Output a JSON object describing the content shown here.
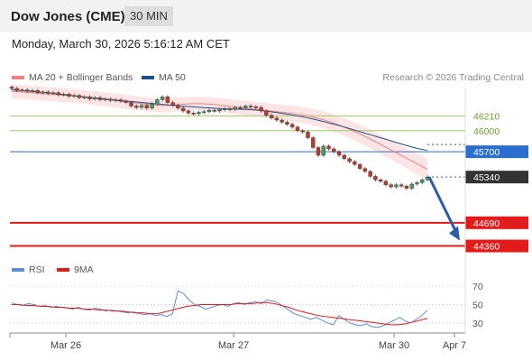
{
  "header": {
    "title": "Dow Jones (CME)",
    "timeframe": "30 MIN",
    "date": "Monday, March 30, 2026 5:16:12 AM CET"
  },
  "legend": {
    "ma20_label": "MA 20 + Bollinger Bands",
    "ma50_label": "MA 50",
    "credit": "Research © 2026 Trading Central",
    "rsi_label": "RSI",
    "rsi_ma_label": "9MA"
  },
  "colors": {
    "ma20": "#f08080",
    "band_fill": "#fde0e0",
    "ma50": "#1f4e8c",
    "resistance_line": "#9ccc65",
    "resistance_label": "#6a9f2e",
    "pivot": "#2a6ed0",
    "support": "#e31b1b",
    "current": "#333333",
    "candle_up": "#4a9a5a",
    "candle_down": "#c0392b",
    "arrow": "#2a5ca8",
    "rsi": "#5b8de0",
    "rsi_ma": "#e31b1b"
  },
  "chart_data": [
    {
      "type": "candlestick",
      "title": "",
      "x_ticks": [
        "Mar 26",
        "Mar 27",
        "Mar 30",
        "Apr 7"
      ],
      "ylim": [
        44200,
        46600
      ],
      "levels": [
        {
          "name": "resistance",
          "value": 46210,
          "label": "46210"
        },
        {
          "name": "resistance",
          "value": 46000,
          "label": "46000"
        },
        {
          "name": "pivot",
          "value": 45700,
          "label": "45700"
        },
        {
          "name": "current",
          "value": 45340,
          "label": "45340"
        },
        {
          "name": "support",
          "value": 44690,
          "label": "44690"
        },
        {
          "name": "support",
          "value": 44360,
          "label": "44360"
        }
      ],
      "closes": [
        46600,
        46570,
        46580,
        46560,
        46570,
        46540,
        46550,
        46530,
        46540,
        46510,
        46520,
        46490,
        46500,
        46470,
        46480,
        46450,
        46470,
        46440,
        46450,
        46430,
        46440,
        46420,
        46400,
        46350,
        46330,
        46360,
        46320,
        46380,
        46440,
        46480,
        46400,
        46360,
        46320,
        46280,
        46250,
        46240,
        46260,
        46270,
        46290,
        46280,
        46300,
        46310,
        46300,
        46330,
        46320,
        46350,
        46340,
        46330,
        46280,
        46220,
        46180,
        46150,
        46120,
        46090,
        46050,
        46000,
        45980,
        45900,
        45760,
        45650,
        45780,
        45740,
        45700,
        45650,
        45600,
        45560,
        45520,
        45460,
        45420,
        45350,
        45300,
        45280,
        45230,
        45200,
        45230,
        45210,
        45180,
        45240,
        45260,
        45300,
        45340
      ],
      "ma20": [
        46560,
        46550,
        46540,
        46530,
        46520,
        46510,
        46500,
        46490,
        46475,
        46460,
        46445,
        46430,
        46415,
        46400,
        46385,
        46370,
        46360,
        46360,
        46370,
        46380,
        46385,
        46380,
        46370,
        46355,
        46340,
        46325,
        46310,
        46295,
        46280,
        46265,
        46250,
        46235,
        46210,
        46180,
        46145,
        46100,
        46050,
        45995,
        45935,
        45870,
        45800,
        45730,
        45660,
        45590,
        45520,
        45450
      ],
      "ma50": [
        46580,
        46570,
        46560,
        46548,
        46535,
        46520,
        46505,
        46490,
        46475,
        46460,
        46448,
        46435,
        46422,
        46410,
        46398,
        46385,
        46372,
        46360,
        46350,
        46340,
        46330,
        46322,
        46315,
        46310,
        46305,
        46300,
        46290,
        46275,
        46258,
        46238,
        46215,
        46190,
        46162,
        46130,
        46095,
        46060,
        46020,
        45980,
        45940,
        45900,
        45860,
        45820,
        45780,
        45745,
        45720
      ]
    },
    {
      "type": "line",
      "title": "",
      "ylim": [
        20,
        75
      ],
      "y_ticks": [
        70,
        50,
        30
      ],
      "series": [
        {
          "name": "RSI",
          "values": [
            52,
            50,
            49,
            51,
            50,
            48,
            49,
            47,
            48,
            47,
            46,
            45,
            47,
            45,
            44,
            46,
            45,
            43,
            44,
            43,
            42,
            41,
            42,
            40,
            39,
            40,
            38,
            39,
            37,
            40,
            65,
            62,
            55,
            50,
            48,
            45,
            47,
            49,
            50,
            48,
            51,
            52,
            50,
            52,
            53,
            51,
            55,
            54,
            52,
            48,
            44,
            40,
            38,
            36,
            34,
            36,
            33,
            30,
            28,
            38,
            34,
            30,
            28,
            27,
            29,
            26,
            25,
            27,
            30,
            33,
            36,
            32,
            30,
            34,
            38,
            44
          ]
        },
        {
          "name": "9MA",
          "values": [
            50,
            50,
            49,
            49,
            48,
            48,
            47,
            47,
            46,
            46,
            45,
            45,
            44,
            44,
            43,
            43,
            42,
            41,
            41,
            40,
            40,
            42,
            44,
            46,
            48,
            49,
            50,
            50,
            50,
            50,
            50,
            51,
            51,
            51,
            52,
            52,
            51,
            49,
            47,
            44,
            42,
            40,
            38,
            37,
            36,
            35,
            34,
            33,
            32,
            31,
            30,
            29,
            28,
            28,
            29,
            31,
            33,
            35
          ]
        }
      ]
    }
  ]
}
